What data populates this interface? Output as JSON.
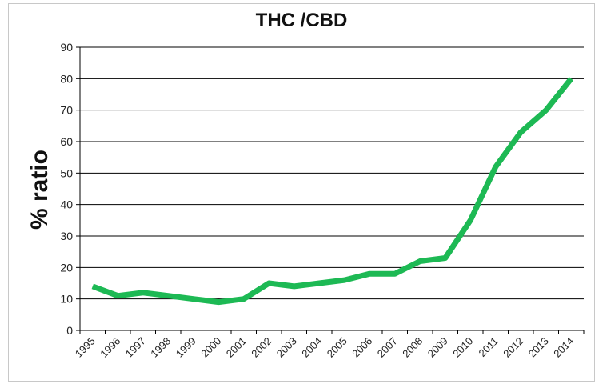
{
  "chart_data": {
    "type": "line",
    "title": "THC /CBD",
    "xlabel": "",
    "ylabel": "% ratio",
    "ylim": [
      0,
      90
    ],
    "yticks": [
      0,
      10,
      20,
      30,
      40,
      50,
      60,
      70,
      80,
      90
    ],
    "grid": "horizontal",
    "legend": "none",
    "categories": [
      "1995",
      "1996",
      "1997",
      "1998",
      "1999",
      "2000",
      "2001",
      "2002",
      "2003",
      "2004",
      "2005",
      "2006",
      "2007",
      "2008",
      "2009",
      "2010",
      "2011",
      "2012",
      "2013",
      "2014"
    ],
    "series": [
      {
        "values": [
          14,
          11,
          12,
          11,
          10,
          9,
          10,
          15,
          14,
          15,
          16,
          18,
          18,
          22,
          23,
          35,
          52,
          63,
          70,
          80
        ],
        "color": "#1db954"
      }
    ]
  }
}
